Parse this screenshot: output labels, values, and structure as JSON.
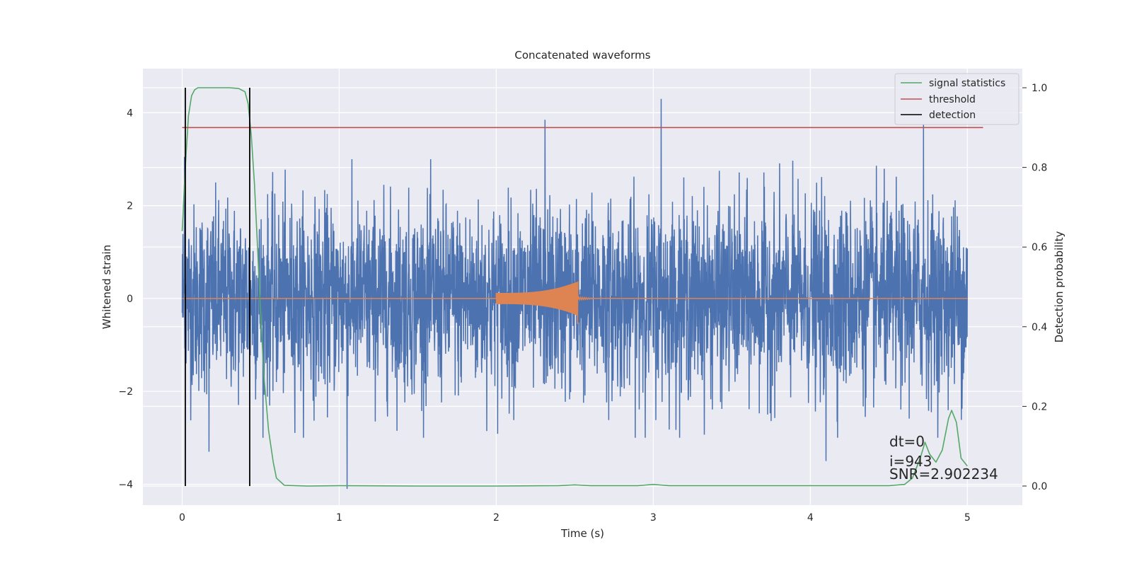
{
  "chart_data": {
    "type": "line",
    "title": "Concatenated waveforms",
    "xlabel": "Time (s)",
    "ylabel": "Whitened strain",
    "y2label": "Detection probability",
    "xlim": [
      -0.25,
      5.35
    ],
    "ylim": [
      -4.45,
      4.95
    ],
    "y2lim": [
      -0.048,
      1.048
    ],
    "xticks": [
      0,
      1,
      2,
      3,
      4,
      5
    ],
    "yticks": [
      -4,
      -2,
      0,
      2,
      4
    ],
    "y2ticks": [
      0.0,
      0.2,
      0.4,
      0.6,
      0.8,
      1.0
    ],
    "xtick_labels": [
      "0",
      "1",
      "2",
      "3",
      "4",
      "5"
    ],
    "ytick_labels": [
      "−4",
      "−2",
      "0",
      "2",
      "4"
    ],
    "y2tick_labels": [
      "0.0",
      "0.2",
      "0.4",
      "0.6",
      "0.8",
      "1.0"
    ],
    "grid": true,
    "legend_position": "top-right",
    "series": [
      {
        "name": "",
        "axis": "left",
        "kind": "noise",
        "color": "#4c72b0",
        "x_range": [
          0,
          5
        ],
        "typical_amplitude": 1.0,
        "max": 4.3,
        "min": -4.1
      },
      {
        "name": "",
        "axis": "left",
        "kind": "chirp",
        "color": "#dd8452",
        "x_range": [
          0,
          5
        ],
        "burst_start": 2.0,
        "burst_end": 2.52,
        "burst_max": 0.35,
        "burst_min": -0.55
      },
      {
        "name": "signal statistics",
        "axis": "right",
        "color": "#55a868",
        "x": [
          0.0,
          0.02,
          0.04,
          0.06,
          0.08,
          0.1,
          0.2,
          0.3,
          0.36,
          0.4,
          0.42,
          0.44,
          0.46,
          0.48,
          0.5,
          0.52,
          0.55,
          0.58,
          0.6,
          0.65,
          0.8,
          1.0,
          1.5,
          2.0,
          2.4,
          2.5,
          2.6,
          2.9,
          3.0,
          3.1,
          3.5,
          4.0,
          4.5,
          4.6,
          4.65,
          4.7,
          4.73,
          4.76,
          4.8,
          4.84,
          4.88,
          4.9,
          4.93,
          4.96,
          5.0
        ],
        "y": [
          0.64,
          0.8,
          0.93,
          0.98,
          0.995,
          1.0,
          1.0,
          1.0,
          0.998,
          0.99,
          0.96,
          0.88,
          0.76,
          0.6,
          0.43,
          0.28,
          0.14,
          0.06,
          0.02,
          0.002,
          0.0,
          0.001,
          0.0,
          0.0,
          0.001,
          0.003,
          0.001,
          0.001,
          0.004,
          0.001,
          0.001,
          0.001,
          0.001,
          0.004,
          0.02,
          0.07,
          0.11,
          0.08,
          0.06,
          0.09,
          0.17,
          0.19,
          0.16,
          0.07,
          0.05
        ]
      },
      {
        "name": "threshold",
        "axis": "right",
        "color": "#c44e52",
        "x": [
          0.0,
          5.1
        ],
        "y": [
          0.9,
          0.9
        ]
      },
      {
        "name": "detection",
        "axis": "right",
        "kind": "vlines",
        "color": "#000000",
        "x": [
          0.02,
          0.43
        ],
        "y_range": [
          0.0,
          1.0
        ]
      }
    ],
    "annotations": [
      "dt=0",
      "i=943",
      "SNR=2.902234"
    ]
  }
}
